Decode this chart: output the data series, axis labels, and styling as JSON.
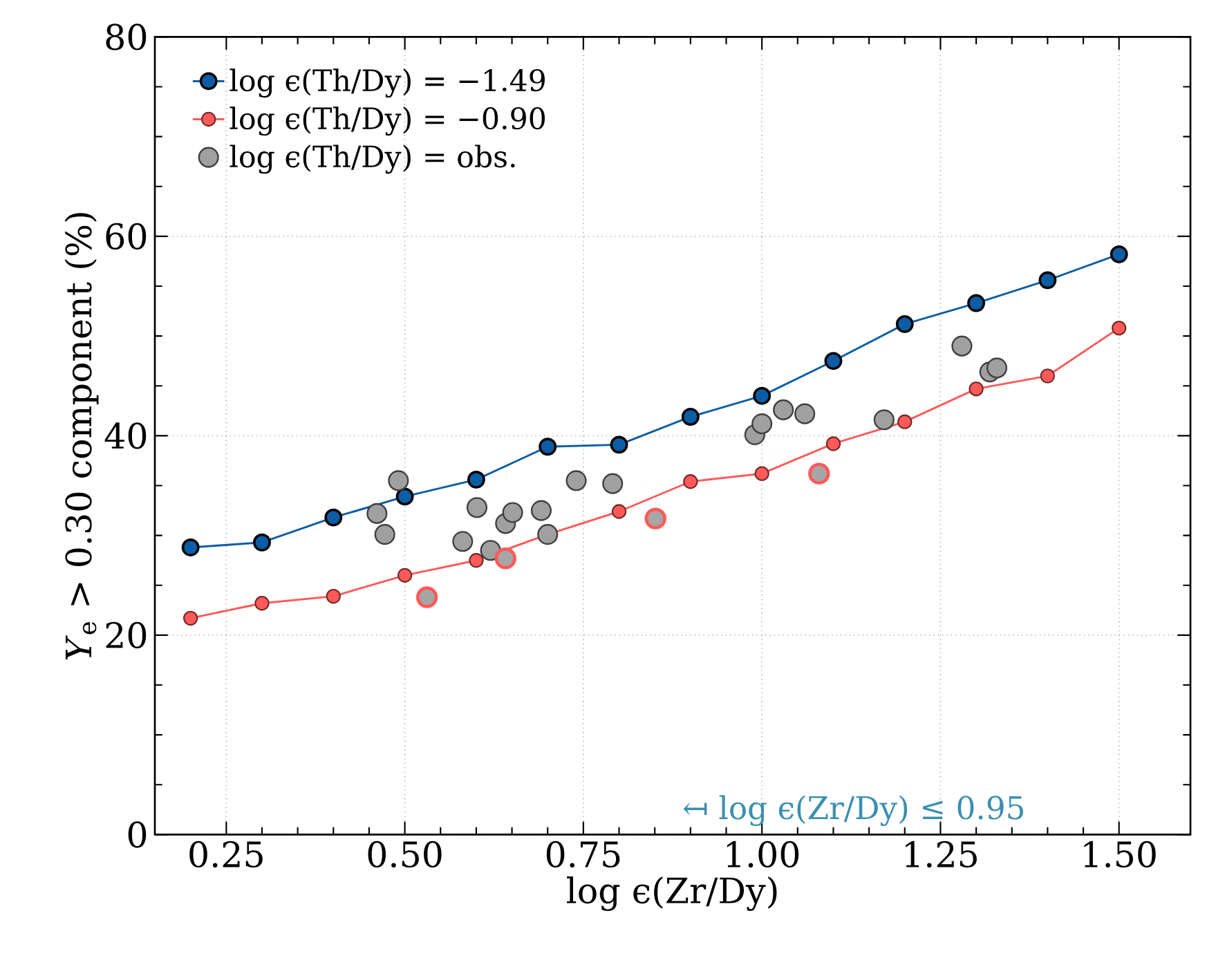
{
  "chart_data": {
    "type": "line",
    "xlabel": "log ϵ(Zr/Dy)",
    "ylabel": "*Y*$_{e}$ > 0.30 component (%)",
    "xlim": [
      0.15,
      1.6
    ],
    "ylim": [
      0,
      80
    ],
    "xticks": [
      {
        "value": 0.25,
        "label": "0.25"
      },
      {
        "value": 0.5,
        "label": "0.50"
      },
      {
        "value": 0.75,
        "label": "0.75"
      },
      {
        "value": 1.0,
        "label": "1.00"
      },
      {
        "value": 1.25,
        "label": "1.25"
      },
      {
        "value": 1.5,
        "label": "1.50"
      }
    ],
    "yticks": [
      0,
      20,
      40,
      60,
      80
    ],
    "grid": true,
    "legend": "top left",
    "marker": "circle",
    "line_style": "solid",
    "annotations": [
      "↤ log ϵ(Zr/Dy) ≤ 0.95"
    ],
    "series": [
      {
        "name": "log ϵ(Th/Dy) = −1.49",
        "color": "#0c5da5",
        "x": [
          0.2,
          0.3,
          0.4,
          0.5,
          0.6,
          0.7,
          0.8,
          0.9,
          1.0,
          1.1,
          1.2,
          1.3,
          1.4,
          1.5
        ],
        "values": [
          28.8,
          29.3,
          31.8,
          33.9,
          35.6,
          38.9,
          39.1,
          41.9,
          44.0,
          47.5,
          51.2,
          53.3,
          55.6,
          58.2
        ]
      },
      {
        "name": "log ϵ(Th/Dy) = −0.90",
        "color": "#ff5a5a",
        "x": [
          0.2,
          0.3,
          0.4,
          0.5,
          0.6,
          0.7,
          0.8,
          0.9,
          1.0,
          1.1,
          1.2,
          1.3,
          1.4,
          1.5
        ],
        "values": [
          21.7,
          23.2,
          23.9,
          26.0,
          27.5,
          30.1,
          32.4,
          35.4,
          36.2,
          39.2,
          41.4,
          44.7,
          46.0,
          50.8
        ]
      },
      {
        "name": "log ϵ(Th/Dy) = obs.",
        "type": "scatter",
        "color": "#a0a0a0",
        "x": [
          0.461,
          0.472,
          0.491,
          0.601,
          0.581,
          0.62,
          0.641,
          0.651,
          0.691,
          0.7,
          0.74,
          0.791,
          0.99,
          1.0,
          1.03,
          1.06,
          1.171,
          1.28,
          1.319,
          1.329
        ],
        "values": [
          32.2,
          30.1,
          35.5,
          32.8,
          29.4,
          28.5,
          31.2,
          32.3,
          32.5,
          30.1,
          35.5,
          35.2,
          40.1,
          41.2,
          42.6,
          42.2,
          41.6,
          49.0,
          46.4,
          46.8
        ]
      },
      {
        "type": "scatter",
        "color": "#ff5a5a",
        "x": [
          0.531,
          0.641,
          0.851,
          1.08
        ],
        "values": [
          23.8,
          27.7,
          31.7,
          36.2
        ]
      }
    ]
  }
}
